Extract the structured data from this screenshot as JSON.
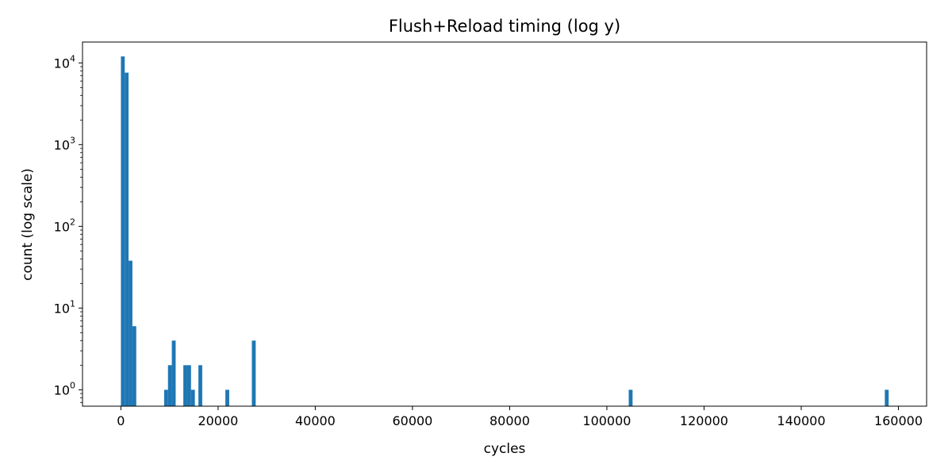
{
  "chart_data": {
    "type": "bar",
    "title": "Flush+Reload timing (log y)",
    "xlabel": "cycles",
    "ylabel": "count (log scale)",
    "yscale": "log",
    "xlim": [
      -7900,
      165800
    ],
    "ylim": [
      0.63,
      18000
    ],
    "xticks": [
      0,
      20000,
      40000,
      60000,
      80000,
      100000,
      120000,
      140000,
      160000
    ],
    "xtick_labels": [
      "0",
      "20000",
      "40000",
      "60000",
      "80000",
      "100000",
      "120000",
      "140000",
      "160000"
    ],
    "yticks": [
      1,
      10,
      100,
      1000,
      10000
    ],
    "ytick_labels": [
      {
        "base": "10",
        "exp": "0"
      },
      {
        "base": "10",
        "exp": "1"
      },
      {
        "base": "10",
        "exp": "2"
      },
      {
        "base": "10",
        "exp": "3"
      },
      {
        "base": "10",
        "exp": "4"
      }
    ],
    "bin_width": 790,
    "bins": [
      {
        "x0": 0,
        "count": 12000
      },
      {
        "x0": 790,
        "count": 7600
      },
      {
        "x0": 1580,
        "count": 38
      },
      {
        "x0": 2370,
        "count": 6
      },
      {
        "x0": 8900,
        "count": 1
      },
      {
        "x0": 9690,
        "count": 2
      },
      {
        "x0": 10480,
        "count": 4
      },
      {
        "x0": 12850,
        "count": 2
      },
      {
        "x0": 13640,
        "count": 2
      },
      {
        "x0": 14430,
        "count": 1
      },
      {
        "x0": 15950,
        "count": 2
      },
      {
        "x0": 21500,
        "count": 1
      },
      {
        "x0": 26950,
        "count": 4
      },
      {
        "x0": 104500,
        "count": 1
      },
      {
        "x0": 157200,
        "count": 1
      }
    ],
    "bar_color": "#1f77b4",
    "grid": false,
    "legend": "none"
  }
}
